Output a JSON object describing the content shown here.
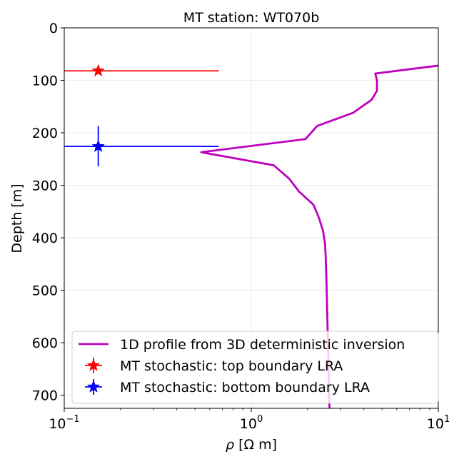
{
  "chart_data": {
    "type": "line",
    "title": "MT station: WT070b",
    "xlabel_symbol": "ρ",
    "xlabel_unit": "[Ω m]",
    "ylabel": "Depth [m]",
    "xscale": "log",
    "xlim": [
      0.1,
      10
    ],
    "ylim": [
      725,
      0
    ],
    "y_inverted": true,
    "grid": true,
    "x_ticks": [
      {
        "value": 0.1,
        "base": "10",
        "exp": "−1"
      },
      {
        "value": 1,
        "base": "10",
        "exp": "0"
      },
      {
        "value": 10,
        "base": "10",
        "exp": "1"
      }
    ],
    "y_ticks": [
      0,
      100,
      200,
      300,
      400,
      500,
      600,
      700
    ],
    "legend": {
      "placement": "lower-right",
      "entries": [
        "1D profile from 3D deterministic inversion",
        "MT stochastic: top boundary LRA",
        "MT stochastic: bottom boundary LRA"
      ]
    },
    "series": [
      {
        "kind": "line",
        "color": "#bf00bf",
        "points": [
          [
            10.0,
            72
          ],
          [
            4.6,
            87
          ],
          [
            4.7,
            100
          ],
          [
            4.7,
            120
          ],
          [
            4.4,
            137
          ],
          [
            3.5,
            162
          ],
          [
            2.25,
            187
          ],
          [
            1.95,
            212
          ],
          [
            0.54,
            237
          ],
          [
            1.32,
            262
          ],
          [
            1.6,
            288
          ],
          [
            1.8,
            312
          ],
          [
            2.15,
            337
          ],
          [
            2.3,
            362
          ],
          [
            2.42,
            387
          ],
          [
            2.48,
            412
          ],
          [
            2.5,
            437
          ],
          [
            2.52,
            475
          ],
          [
            2.54,
            525
          ],
          [
            2.56,
            575
          ],
          [
            2.58,
            625
          ],
          [
            2.6,
            675
          ],
          [
            2.62,
            725
          ]
        ]
      },
      {
        "kind": "errorpoint",
        "color": "#ff0000",
        "x": 0.152,
        "y": 82,
        "x_err_range": [
          0.1,
          0.67
        ],
        "y_err_range": [
          82,
          82
        ]
      },
      {
        "kind": "errorpoint",
        "color": "#0000ff",
        "x": 0.152,
        "y": 226,
        "x_err_range": [
          0.1,
          0.67
        ],
        "y_err_range": [
          187,
          264
        ]
      }
    ]
  }
}
